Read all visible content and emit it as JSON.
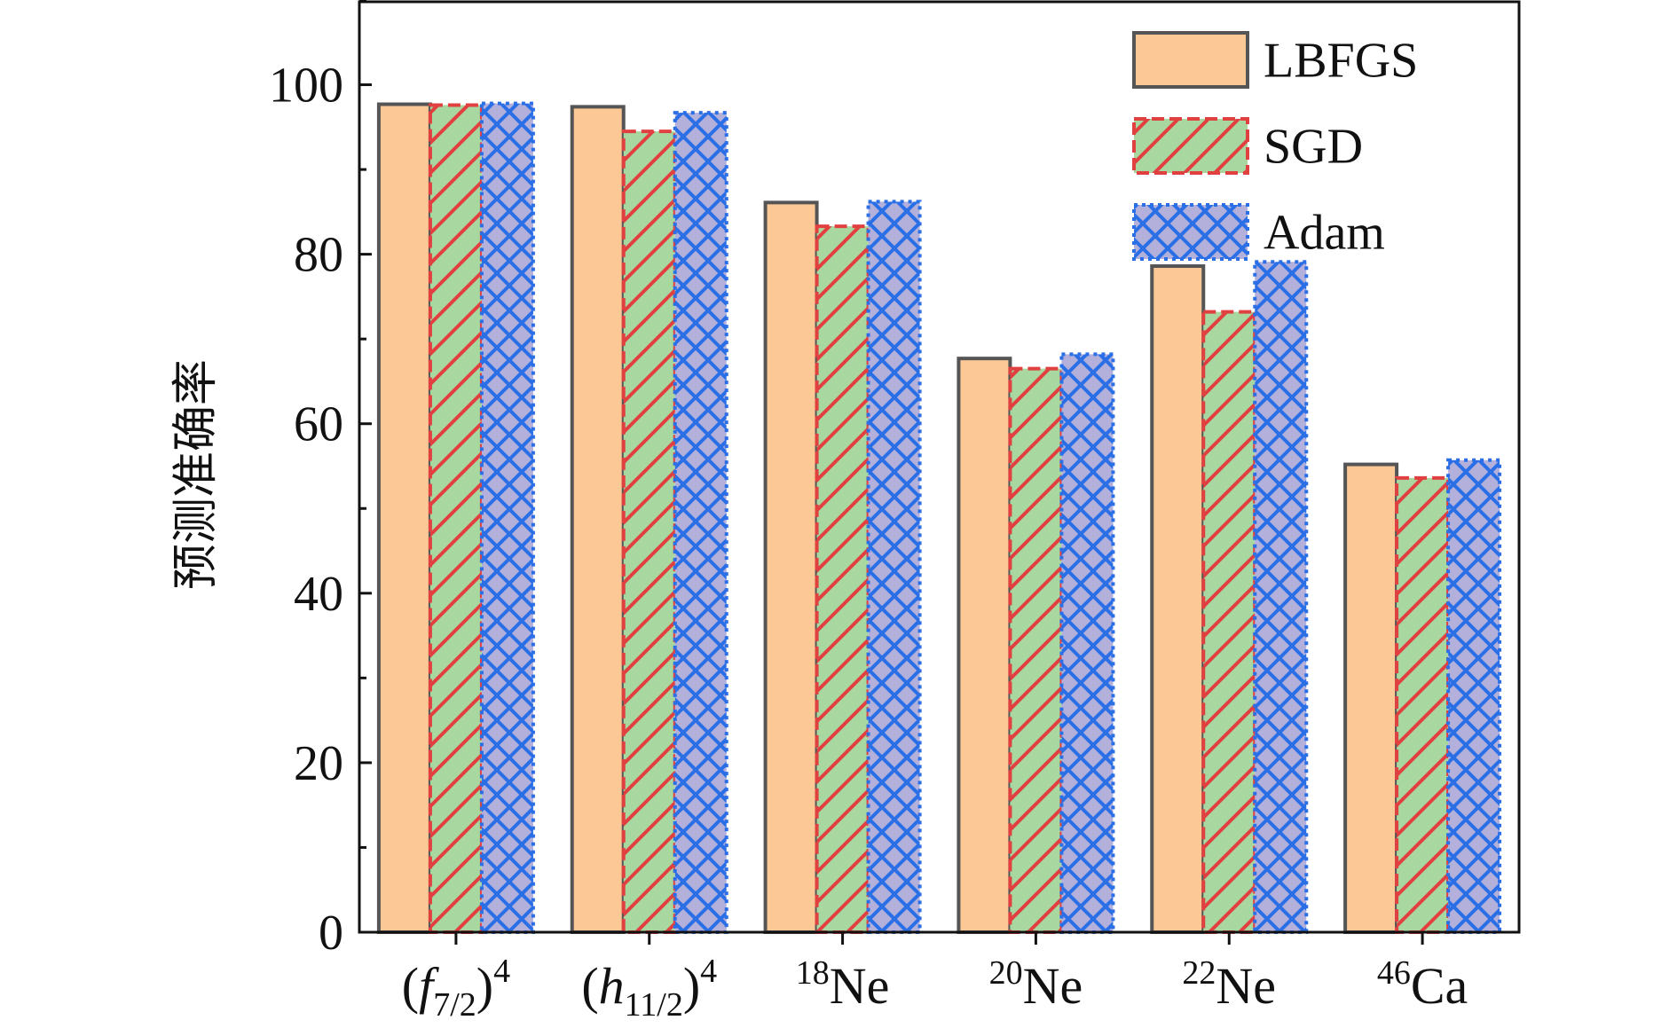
{
  "chart_data": {
    "type": "bar",
    "title": "",
    "xlabel": "",
    "ylabel": "预测准确率",
    "ylim": [
      0,
      110
    ],
    "yticks": [
      0,
      20,
      40,
      60,
      80,
      100
    ],
    "grid": false,
    "legend_position": "top-right",
    "categories": [
      {
        "base": "(f",
        "sub": "7/2",
        "close": ")",
        "sup": "4",
        "italic": true
      },
      {
        "base": "(h",
        "sub": "11/2",
        "close": ")",
        "sup": "4",
        "italic": true
      },
      {
        "pre_sup": "18",
        "base": "Ne"
      },
      {
        "pre_sup": "20",
        "base": "Ne"
      },
      {
        "pre_sup": "22",
        "base": "Ne"
      },
      {
        "pre_sup": "46",
        "base": "Ca"
      }
    ],
    "series": [
      {
        "name": "LBFGS",
        "values": [
          97.7,
          97.4,
          86.1,
          67.7,
          78.6,
          55.2
        ],
        "fill": "#fcc896",
        "stroke": "#555555",
        "pattern": "none"
      },
      {
        "name": "SGD",
        "values": [
          97.6,
          94.5,
          83.3,
          66.5,
          73.2,
          53.6
        ],
        "fill": "#a8d8a0",
        "stroke": "#e04040",
        "pattern": "diagonal"
      },
      {
        "name": "Adam",
        "values": [
          97.8,
          96.7,
          86.2,
          68.2,
          79.1,
          55.7
        ],
        "fill": "#b4b0dc",
        "stroke": "#2b6fe6",
        "pattern": "crosshatch"
      }
    ]
  }
}
